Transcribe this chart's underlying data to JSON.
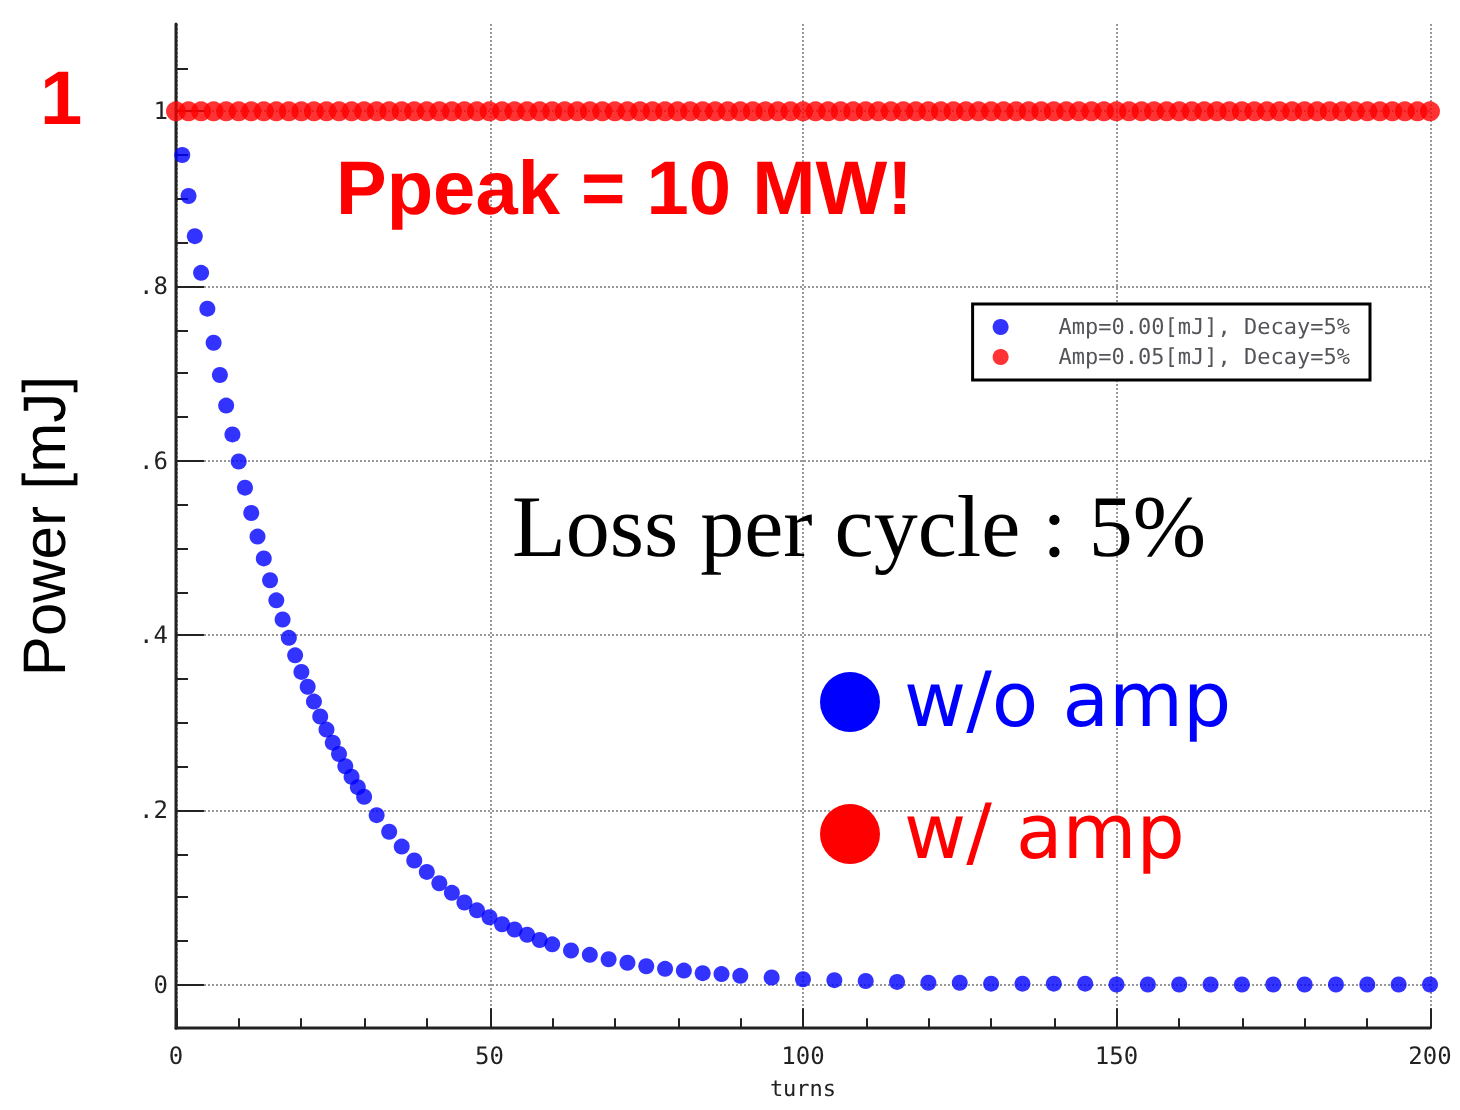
{
  "chart_data": {
    "type": "scatter",
    "xlabel": "turns",
    "ylabel": "Power [mJ]",
    "xlim": [
      0,
      200
    ],
    "ylim": [
      -0.05,
      1.1
    ],
    "xticks": [
      0,
      50,
      100,
      150,
      200
    ],
    "yticks": [
      0,
      {
        "value": 0.2,
        "label": ".2"
      },
      {
        "value": 0.4,
        "label": ".4"
      },
      {
        "value": 0.6,
        "label": ".6"
      },
      {
        "value": 0.8,
        "label": ".8"
      },
      1
    ],
    "grid": true,
    "legend": "top right",
    "marker": "circle",
    "series": [
      {
        "name": "Amp=0.00[mJ], Decay=5%",
        "color": "#0000ff",
        "x": [
          1,
          2,
          3,
          4,
          5,
          6,
          7,
          8,
          9,
          10,
          11,
          12,
          13,
          14,
          15,
          16,
          17,
          18,
          19,
          20,
          21,
          22,
          23,
          24,
          25,
          26,
          27,
          28,
          29,
          30,
          32,
          34,
          36,
          38,
          40,
          42,
          44,
          46,
          48,
          50,
          52,
          54,
          56,
          58,
          60,
          63,
          66,
          69,
          72,
          75,
          78,
          81,
          84,
          87,
          90,
          95,
          100,
          105,
          110,
          115,
          120,
          125,
          130,
          135,
          140,
          145,
          150,
          155,
          160,
          165,
          170,
          175,
          180,
          185,
          190,
          195,
          200
        ],
        "values": [
          0.95,
          0.903,
          0.857,
          0.815,
          0.774,
          0.735,
          0.698,
          0.663,
          0.63,
          0.599,
          0.569,
          0.54,
          0.513,
          0.488,
          0.463,
          0.44,
          0.418,
          0.397,
          0.377,
          0.358,
          0.341,
          0.324,
          0.307,
          0.292,
          0.277,
          0.264,
          0.25,
          0.238,
          0.226,
          0.215,
          0.194,
          0.175,
          0.158,
          0.142,
          0.129,
          0.116,
          0.105,
          0.094,
          0.085,
          0.077,
          0.069,
          0.063,
          0.057,
          0.051,
          0.046,
          0.039,
          0.034,
          0.029,
          0.025,
          0.021,
          0.018,
          0.016,
          0.013,
          0.012,
          0.01,
          0.008,
          0.006,
          0.005,
          0.004,
          0.003,
          0.002,
          0.002,
          0.001,
          0.001,
          0.001,
          0.001,
          0,
          0,
          0,
          0,
          0,
          0,
          0,
          0,
          0,
          0,
          0
        ]
      },
      {
        "name": "Amp=0.05[mJ], Decay=5%",
        "color": "#ff0000",
        "x": [
          0,
          2,
          4,
          6,
          8,
          10,
          12,
          14,
          16,
          18,
          20,
          22,
          24,
          26,
          28,
          30,
          32,
          34,
          36,
          38,
          40,
          42,
          44,
          46,
          48,
          50,
          52,
          54,
          56,
          58,
          60,
          62,
          64,
          66,
          68,
          70,
          72,
          74,
          76,
          78,
          80,
          82,
          84,
          86,
          88,
          90,
          92,
          94,
          96,
          98,
          100,
          102,
          104,
          106,
          108,
          110,
          112,
          114,
          116,
          118,
          120,
          122,
          124,
          126,
          128,
          130,
          132,
          134,
          136,
          138,
          140,
          142,
          144,
          146,
          148,
          150,
          152,
          154,
          156,
          158,
          160,
          162,
          164,
          166,
          168,
          170,
          172,
          174,
          176,
          178,
          180,
          182,
          184,
          186,
          188,
          190,
          192,
          194,
          196,
          198,
          200
        ],
        "values": [
          1,
          1,
          1,
          1,
          1,
          1,
          1,
          1,
          1,
          1,
          1,
          1,
          1,
          1,
          1,
          1,
          1,
          1,
          1,
          1,
          1,
          1,
          1,
          1,
          1,
          1,
          1,
          1,
          1,
          1,
          1,
          1,
          1,
          1,
          1,
          1,
          1,
          1,
          1,
          1,
          1,
          1,
          1,
          1,
          1,
          1,
          1,
          1,
          1,
          1,
          1,
          1,
          1,
          1,
          1,
          1,
          1,
          1,
          1,
          1,
          1,
          1,
          1,
          1,
          1,
          1,
          1,
          1,
          1,
          1,
          1,
          1,
          1,
          1,
          1,
          1,
          1,
          1,
          1,
          1,
          1,
          1,
          1,
          1,
          1,
          1,
          1,
          1,
          1,
          1,
          1,
          1,
          1,
          1,
          1,
          1,
          1,
          1,
          1,
          1,
          1
        ]
      }
    ],
    "annotations": [
      "1",
      "Ppeak = 10 MW!",
      "Loss per cycle : 5%",
      "w/o amp",
      "w/ amp"
    ]
  }
}
